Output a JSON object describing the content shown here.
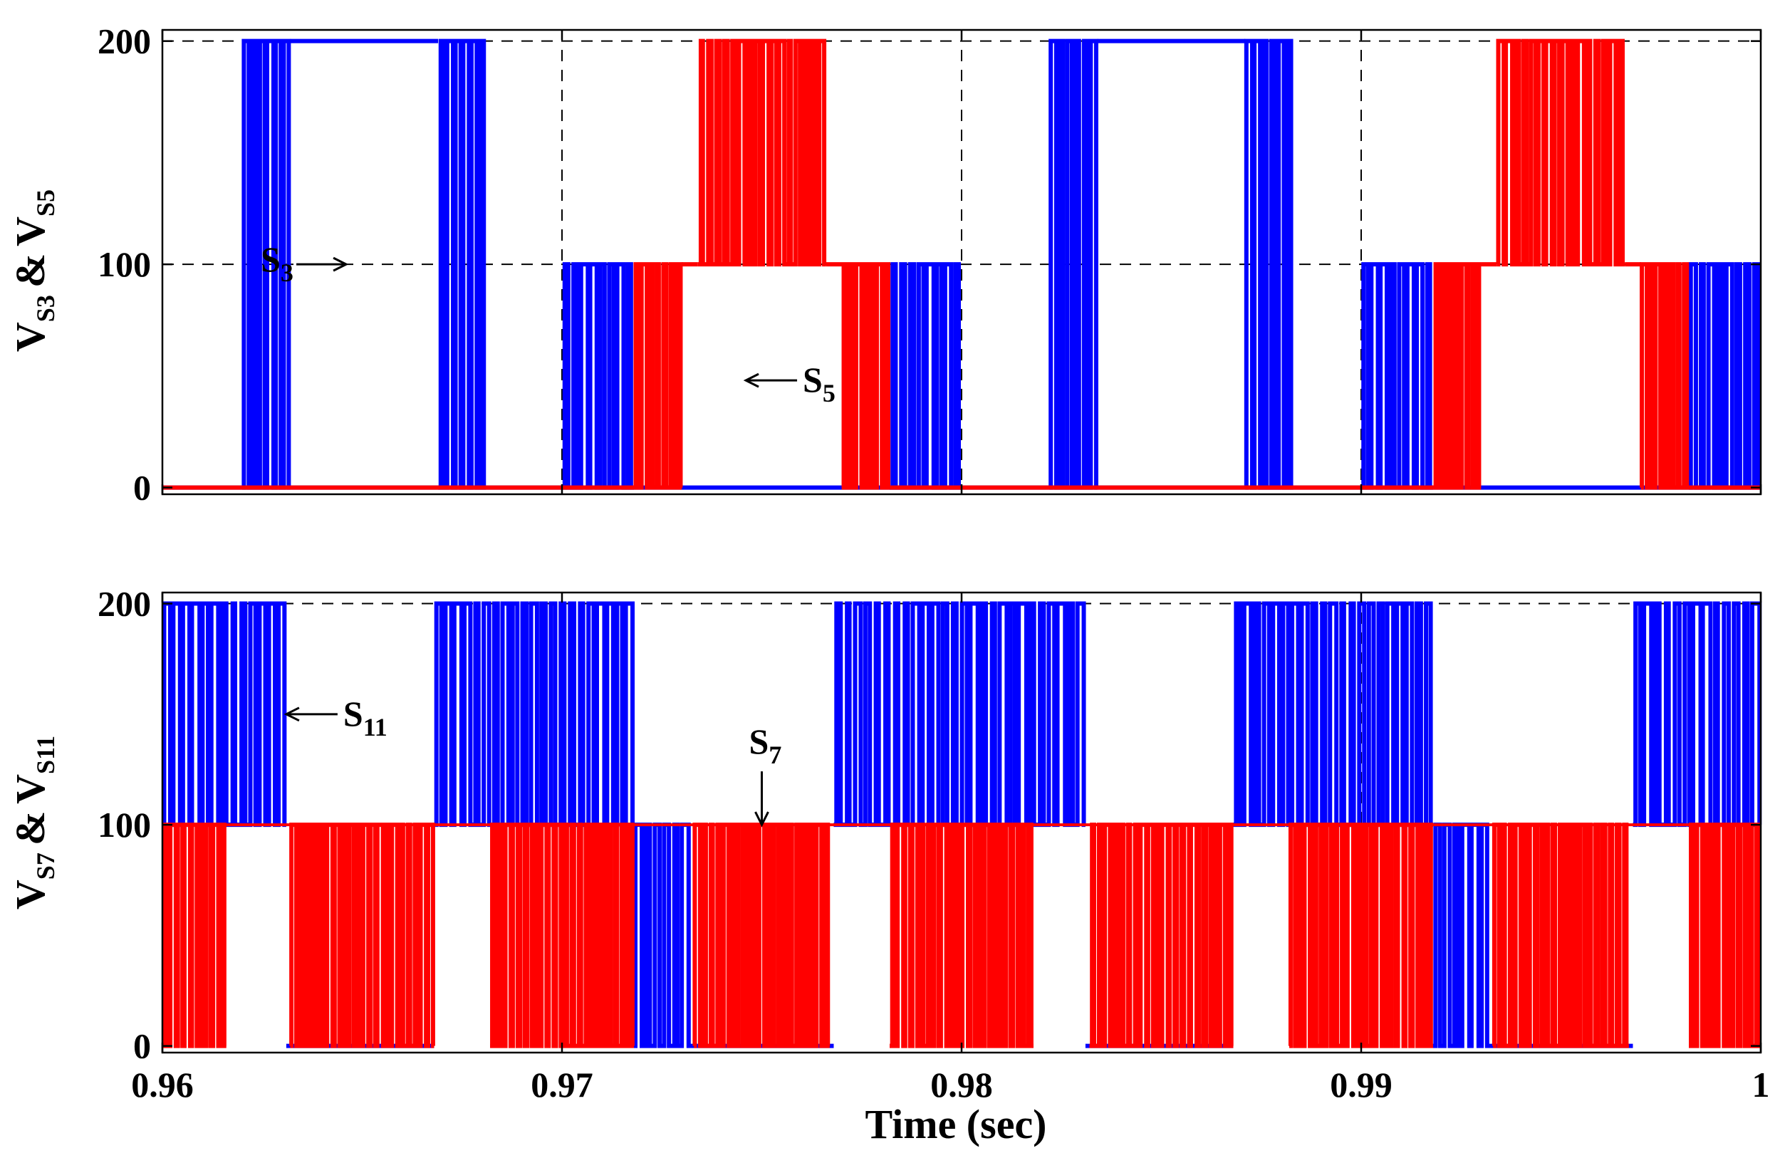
{
  "chart_data": [
    {
      "type": "line",
      "panel": "top",
      "ylabel_main": "V",
      "ylabel_sub1": "S3",
      "ylabel_amp": "&",
      "ylabel_sub2": "S5",
      "xlim": [
        0.96,
        1.0
      ],
      "ylim": [
        -3,
        205
      ],
      "yticks": [
        0,
        100,
        200
      ],
      "ytick_labels": [
        "0",
        "100",
        "200"
      ],
      "grid": true,
      "series": [
        {
          "color": "#0000ff",
          "levels": [
            0,
            200
          ],
          "pwm_regions": [
            {
              "x0": 0.962,
              "x1": 0.9632
            },
            {
              "x0": 0.9669,
              "x1": 0.9681
            },
            {
              "x0": 0.9822,
              "x1": 0.9834
            },
            {
              "x0": 0.9871,
              "x1": 0.9883
            }
          ],
          "high_regions": [
            {
              "x0": 0.9632,
              "x1": 0.9669
            },
            {
              "x0": 0.9834,
              "x1": 0.9871
            }
          ],
          "low_level_regions": [
            {
              "x0": 0.97,
              "x1": 0.9718,
              "lo": 0,
              "hi": 100,
              "pwm": true
            },
            {
              "x0": 0.9718,
              "x1": 0.9782,
              "lo": 0,
              "hi": 0,
              "pwm": false
            },
            {
              "x0": 0.9782,
              "x1": 0.98,
              "lo": 0,
              "hi": 100,
              "pwm": true
            },
            {
              "x0": 0.99,
              "x1": 0.9918,
              "lo": 0,
              "hi": 100,
              "pwm": true
            },
            {
              "x0": 0.9918,
              "x1": 0.9982,
              "lo": 0,
              "hi": 0,
              "pwm": false
            },
            {
              "x0": 0.9982,
              "x1": 1.0,
              "lo": 0,
              "hi": 100,
              "pwm": true
            }
          ]
        },
        {
          "color": "#ff0000",
          "levels": [
            0,
            100,
            200
          ],
          "segments": [
            {
              "x0": 0.9718,
              "x1": 0.973,
              "lo": 0,
              "hi": 100,
              "pwm": true
            },
            {
              "x0": 0.973,
              "x1": 0.9734,
              "lo": 100,
              "hi": 100,
              "pwm": false
            },
            {
              "x0": 0.9734,
              "x1": 0.9766,
              "lo": 100,
              "hi": 200,
              "pwm": true
            },
            {
              "x0": 0.9766,
              "x1": 0.977,
              "lo": 100,
              "hi": 100,
              "pwm": false
            },
            {
              "x0": 0.977,
              "x1": 0.9782,
              "lo": 0,
              "hi": 100,
              "pwm": true
            },
            {
              "x0": 0.9918,
              "x1": 0.993,
              "lo": 0,
              "hi": 100,
              "pwm": true
            },
            {
              "x0": 0.993,
              "x1": 0.9934,
              "lo": 100,
              "hi": 100,
              "pwm": false
            },
            {
              "x0": 0.9934,
              "x1": 0.9966,
              "lo": 100,
              "hi": 200,
              "pwm": true
            },
            {
              "x0": 0.9966,
              "x1": 0.997,
              "lo": 100,
              "hi": 100,
              "pwm": false
            },
            {
              "x0": 0.997,
              "x1": 0.9982,
              "lo": 0,
              "hi": 100,
              "pwm": true
            }
          ]
        }
      ],
      "annotations": [
        {
          "main": "S",
          "sub": "3",
          "x": 0.9646,
          "y": 100,
          "dir": "right"
        },
        {
          "main": "S",
          "sub": "5",
          "x": 0.9746,
          "y": 48,
          "dir": "left"
        }
      ]
    },
    {
      "type": "line",
      "panel": "bottom",
      "ylabel_main": "V",
      "ylabel_sub1": "S7",
      "ylabel_amp": "&",
      "ylabel_sub2": "S11",
      "xlabel": "Time (sec)",
      "xlim": [
        0.96,
        1.0
      ],
      "ylim": [
        -3,
        205
      ],
      "yticks": [
        0,
        100,
        200
      ],
      "ytick_labels": [
        "0",
        "100",
        "200"
      ],
      "xticks": [
        0.96,
        0.97,
        0.98,
        0.99,
        1.0
      ],
      "xtick_labels": [
        "0.96",
        "0.97",
        "0.98",
        "0.99",
        "1"
      ],
      "grid": true,
      "series": [
        {
          "color": "#0000ff",
          "segments": [
            {
              "x0": 0.96,
              "x1": 0.9631,
              "lo": 100,
              "hi": 200,
              "pwm": true
            },
            {
              "x0": 0.9631,
              "x1": 0.9668,
              "lo": 0,
              "hi": 0,
              "pwm": false
            },
            {
              "x0": 0.9668,
              "x1": 0.9718,
              "lo": 100,
              "hi": 200,
              "pwm": true
            },
            {
              "x0": 0.9718,
              "x1": 0.9732,
              "lo": 0,
              "hi": 100,
              "pwm": true
            },
            {
              "x0": 0.9732,
              "x1": 0.9768,
              "lo": 0,
              "hi": 0,
              "pwm": false
            },
            {
              "x0": 0.9768,
              "x1": 0.9831,
              "lo": 100,
              "hi": 200,
              "pwm": true
            },
            {
              "x0": 0.9831,
              "x1": 0.9868,
              "lo": 0,
              "hi": 0,
              "pwm": false
            },
            {
              "x0": 0.9868,
              "x1": 0.9918,
              "lo": 100,
              "hi": 200,
              "pwm": true
            },
            {
              "x0": 0.9918,
              "x1": 0.9932,
              "lo": 0,
              "hi": 100,
              "pwm": true
            },
            {
              "x0": 0.9932,
              "x1": 0.9968,
              "lo": 0,
              "hi": 0,
              "pwm": false
            },
            {
              "x0": 0.9968,
              "x1": 1.0,
              "lo": 100,
              "hi": 200,
              "pwm": true
            }
          ]
        },
        {
          "color": "#ff0000",
          "segments": [
            {
              "x0": 0.96,
              "x1": 0.9616,
              "lo": 0,
              "hi": 100,
              "pwm": true
            },
            {
              "x0": 0.9632,
              "x1": 0.9668,
              "lo": 0,
              "hi": 100,
              "pwm": true
            },
            {
              "x0": 0.9682,
              "x1": 0.9718,
              "lo": 0,
              "hi": 100,
              "pwm": true
            },
            {
              "x0": 0.9733,
              "x1": 0.9767,
              "lo": 0,
              "hi": 100,
              "pwm": true
            },
            {
              "x0": 0.9782,
              "x1": 0.9818,
              "lo": 0,
              "hi": 100,
              "pwm": true
            },
            {
              "x0": 0.9832,
              "x1": 0.9868,
              "lo": 0,
              "hi": 100,
              "pwm": true
            },
            {
              "x0": 0.9882,
              "x1": 0.9918,
              "lo": 0,
              "hi": 100,
              "pwm": true
            },
            {
              "x0": 0.9933,
              "x1": 0.9967,
              "lo": 0,
              "hi": 100,
              "pwm": true
            },
            {
              "x0": 0.9982,
              "x1": 1.0,
              "lo": 0,
              "hi": 100,
              "pwm": true
            }
          ]
        }
      ],
      "annotations": [
        {
          "main": "S",
          "sub": "11",
          "x": 0.9631,
          "y": 150,
          "dir": "left"
        },
        {
          "main": "S",
          "sub": "7",
          "x": 0.975,
          "y": 100,
          "dir": "down"
        }
      ]
    }
  ]
}
